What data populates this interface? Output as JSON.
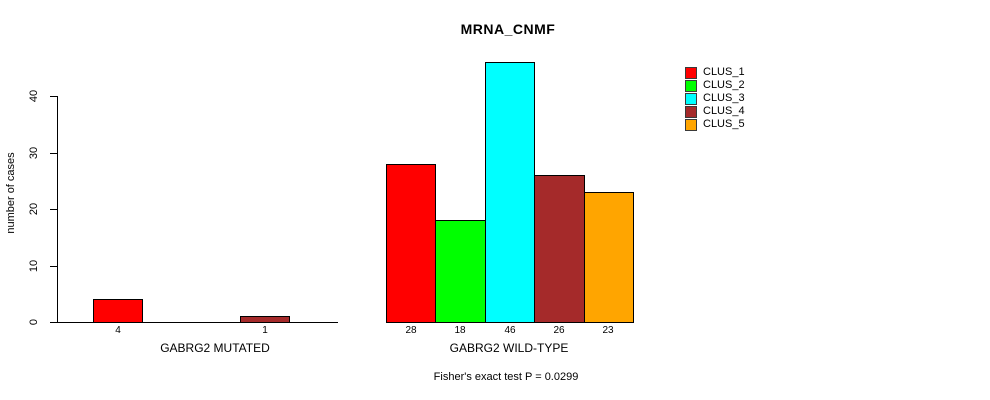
{
  "chart_data": {
    "type": "bar",
    "title": "MRNA_CNMF",
    "ylabel": "number of cases",
    "ylim": [
      0,
      46
    ],
    "yticks": [
      0,
      10,
      20,
      30,
      40
    ],
    "grid": false,
    "legend_position": "right",
    "clusters": [
      {
        "name": "CLUS_1",
        "color": "#FF0000"
      },
      {
        "name": "CLUS_2",
        "color": "#00FF00"
      },
      {
        "name": "CLUS_3",
        "color": "#00FFFF"
      },
      {
        "name": "CLUS_4",
        "color": "#A52A2A"
      },
      {
        "name": "CLUS_5",
        "color": "#FFA500"
      }
    ],
    "groups": [
      {
        "label": "GABRG2 MUTATED",
        "values": [
          4,
          0,
          0,
          1,
          0
        ],
        "bar_labels": [
          "4",
          "",
          "",
          "1",
          ""
        ]
      },
      {
        "label": "GABRG2 WILD-TYPE",
        "values": [
          28,
          18,
          46,
          26,
          23
        ],
        "bar_labels": [
          "28",
          "18",
          "46",
          "26",
          "23"
        ]
      }
    ],
    "annotation": "Fisher's exact test P = 0.0299"
  }
}
